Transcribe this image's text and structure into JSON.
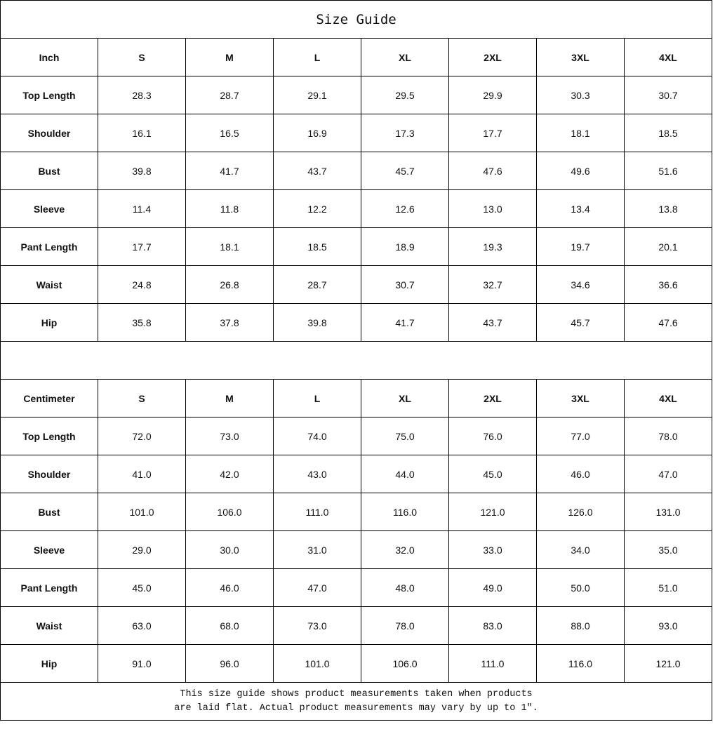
{
  "title": "Size Guide",
  "sizes": [
    "S",
    "M",
    "L",
    "XL",
    "2XL",
    "3XL",
    "4XL"
  ],
  "tables": [
    {
      "unit": "Inch",
      "rows": [
        {
          "label": "Top Length",
          "values": [
            "28.3",
            "28.7",
            "29.1",
            "29.5",
            "29.9",
            "30.3",
            "30.7"
          ]
        },
        {
          "label": "Shoulder",
          "values": [
            "16.1",
            "16.5",
            "16.9",
            "17.3",
            "17.7",
            "18.1",
            "18.5"
          ]
        },
        {
          "label": "Bust",
          "values": [
            "39.8",
            "41.7",
            "43.7",
            "45.7",
            "47.6",
            "49.6",
            "51.6"
          ]
        },
        {
          "label": "Sleeve",
          "values": [
            "11.4",
            "11.8",
            "12.2",
            "12.6",
            "13.0",
            "13.4",
            "13.8"
          ]
        },
        {
          "label": "Pant Length",
          "values": [
            "17.7",
            "18.1",
            "18.5",
            "18.9",
            "19.3",
            "19.7",
            "20.1"
          ]
        },
        {
          "label": "Waist",
          "values": [
            "24.8",
            "26.8",
            "28.7",
            "30.7",
            "32.7",
            "34.6",
            "36.6"
          ]
        },
        {
          "label": "Hip",
          "values": [
            "35.8",
            "37.8",
            "39.8",
            "41.7",
            "43.7",
            "45.7",
            "47.6"
          ]
        }
      ]
    },
    {
      "unit": "Centimeter",
      "rows": [
        {
          "label": "Top Length",
          "values": [
            "72.0",
            "73.0",
            "74.0",
            "75.0",
            "76.0",
            "77.0",
            "78.0"
          ]
        },
        {
          "label": "Shoulder",
          "values": [
            "41.0",
            "42.0",
            "43.0",
            "44.0",
            "45.0",
            "46.0",
            "47.0"
          ]
        },
        {
          "label": "Bust",
          "values": [
            "101.0",
            "106.0",
            "111.0",
            "116.0",
            "121.0",
            "126.0",
            "131.0"
          ]
        },
        {
          "label": "Sleeve",
          "values": [
            "29.0",
            "30.0",
            "31.0",
            "32.0",
            "33.0",
            "34.0",
            "35.0"
          ]
        },
        {
          "label": "Pant Length",
          "values": [
            "45.0",
            "46.0",
            "47.0",
            "48.0",
            "49.0",
            "50.0",
            "51.0"
          ]
        },
        {
          "label": "Waist",
          "values": [
            "63.0",
            "68.0",
            "73.0",
            "78.0",
            "83.0",
            "88.0",
            "93.0"
          ]
        },
        {
          "label": "Hip",
          "values": [
            "91.0",
            "96.0",
            "101.0",
            "106.0",
            "111.0",
            "116.0",
            "121.0"
          ]
        }
      ]
    }
  ],
  "note_line1": "This size guide shows product measurements taken when products",
  "note_line2": "are laid flat. Actual product measurements may vary by up to 1″."
}
